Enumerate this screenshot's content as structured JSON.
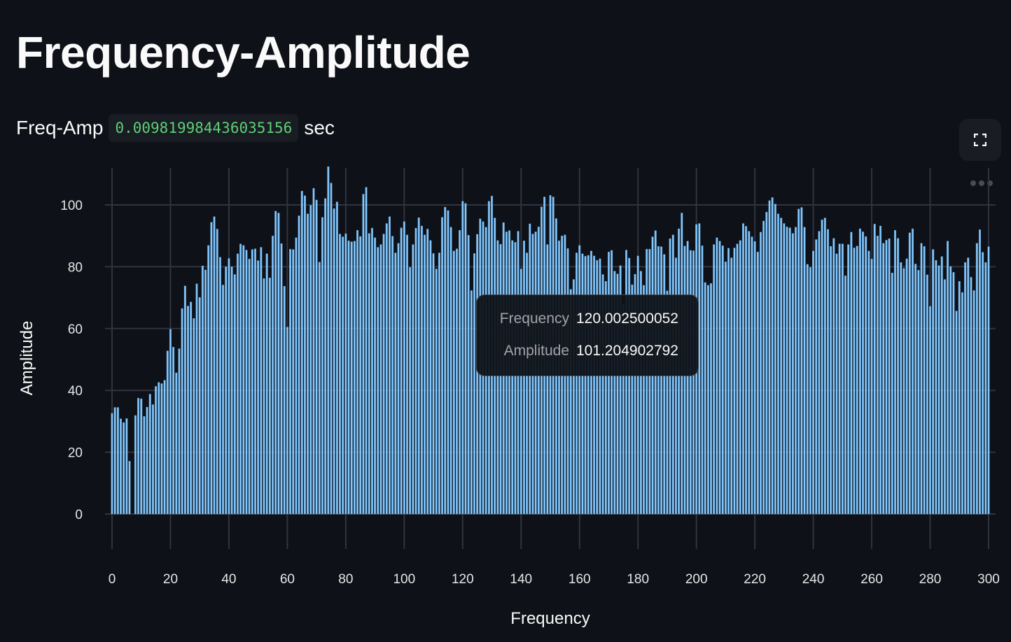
{
  "page": {
    "title": "Frequency-Amplitude",
    "metric_label": "Freq-Amp",
    "metric_value": "0.009819984436035156",
    "metric_unit": "sec",
    "fullscreen_icon": "expand-icon",
    "menu_icon": "more-horizontal-icon"
  },
  "tooltip": {
    "rows": [
      {
        "label": "Frequency",
        "value": "120.002500052"
      },
      {
        "label": "Amplitude",
        "value": "101.204902792"
      }
    ]
  },
  "colors": {
    "background": "#0e1117",
    "bar": "#83c9ff",
    "grid": "#31333f",
    "code_text": "#5ccf74"
  },
  "chart_data": {
    "type": "bar",
    "xlabel": "Frequency",
    "ylabel": "Amplitude",
    "xlim": [
      0,
      300
    ],
    "ylim": [
      0,
      112
    ],
    "grid": true,
    "x_ticks": [
      0,
      20,
      40,
      60,
      80,
      100,
      120,
      140,
      160,
      180,
      200,
      220,
      240,
      260,
      280,
      300
    ],
    "y_ticks": [
      0,
      20,
      40,
      60,
      80,
      100
    ],
    "values": [
      32.6,
      34.5,
      34.5,
      30.8,
      29.6,
      30.9,
      17.1,
      0,
      31.9,
      37.5,
      37.3,
      31.6,
      34.6,
      38.8,
      35.4,
      41.3,
      42.6,
      42.2,
      43.3,
      52.8,
      59.8,
      54.0,
      45.7,
      53.5,
      66.5,
      73.8,
      67.3,
      68.6,
      63.3,
      74.5,
      70.1,
      80.3,
      79.0,
      86.9,
      94.4,
      96.2,
      92.2,
      83.1,
      74.1,
      80.0,
      82.7,
      80.0,
      77.5,
      84.2,
      87.4,
      86.9,
      85.4,
      82.5,
      85.6,
      85.8,
      82.0,
      86.3,
      76.2,
      84.2,
      76.4,
      90.0,
      98.0,
      97.4,
      87.5,
      73.7,
      60.5,
      85.7,
      85.6,
      89.4,
      96.5,
      104.5,
      103.0,
      97.1,
      99.9,
      105.4,
      101.6,
      81.5,
      96.0,
      102.1,
      112.4,
      107.1,
      98.8,
      101.0,
      90.6,
      89.7,
      90.7,
      88.4,
      88.1,
      88.3,
      91.8,
      89.8,
      103.5,
      105.7,
      90.8,
      92.5,
      89.4,
      86.3,
      87.2,
      90.6,
      94.0,
      96.2,
      89.9,
      84.5,
      87.6,
      92.6,
      94.6,
      90.3,
      79.8,
      87.2,
      92.5,
      95.9,
      93.2,
      90.3,
      92.2,
      88.5,
      84.3,
      79.3,
      84.5,
      96.0,
      99.3,
      98.2,
      92.8,
      85.1,
      85.8,
      91.8,
      101.2,
      100.5,
      90.2,
      72.3,
      84.3,
      90.5,
      95.5,
      94.6,
      92.8,
      101.2,
      102.9,
      95.8,
      88.5,
      87.3,
      94.3,
      91.3,
      91.7,
      88.5,
      87.9,
      91.5,
      79.3,
      88.4,
      84.5,
      93.9,
      90.6,
      91.3,
      92.9,
      99.4,
      102.6,
      87.2,
      103.1,
      102.6,
      95.6,
      88.4,
      90.0,
      90.3,
      85.9,
      72.7,
      75.9,
      84.5,
      86.9,
      84.2,
      83.4,
      83.7,
      85.1,
      83.5,
      82.1,
      82.6,
      77.5,
      75.3,
      84.8,
      85.3,
      78.6,
      77.7,
      80.4,
      68.0,
      85.4,
      82.8,
      74.2,
      77.6,
      83.5,
      78.6,
      74.0,
      85.7,
      85.7,
      89.7,
      91.7,
      86.6,
      86.5,
      84.0,
      72.2,
      89.1,
      90.3,
      82.9,
      92.3,
      97.4,
      86.7,
      88.3,
      85.3,
      85.2,
      93.7,
      94.0,
      86.8,
      74.9,
      74.0,
      74.6,
      87.2,
      89.4,
      88.3,
      86.8,
      81.6,
      86.0,
      82.9,
      86.1,
      87.4,
      88.5,
      94.0,
      93.1,
      91.5,
      89.7,
      88.2,
      84.8,
      91.2,
      94.8,
      97.7,
      101.4,
      102.4,
      100.3,
      97.1,
      95.8,
      94.0,
      92.9,
      92.6,
      90.8,
      92.8,
      98.7,
      99.2,
      92.8,
      80.8,
      79.8,
      85.1,
      88.8,
      91.5,
      95.2,
      95.8,
      92.1,
      86.6,
      89.2,
      84.2,
      87.4,
      87.4,
      77.1,
      87.2,
      91.2,
      86.1,
      86.7,
      92.3,
      91.3,
      89.8,
      85.1,
      82.5,
      93.8,
      90.0,
      93.2,
      87.6,
      88.6,
      89.1,
      78.0,
      91.8,
      89.2,
      81.4,
      79.5,
      82.6,
      91.0,
      92.3,
      80.9,
      78.9,
      87.6,
      86.6,
      77.4,
      67.2,
      85.6,
      82.1,
      80.4,
      83.3,
      75.9,
      88.3,
      80.1,
      78.2,
      65.7,
      75.3,
      71.7,
      81.4,
      82.9,
      76.6,
      72.3,
      87.6,
      92.0,
      84.7,
      81.4,
      86.5
    ]
  }
}
